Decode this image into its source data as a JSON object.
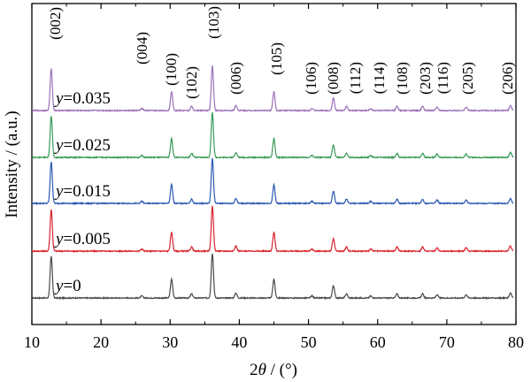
{
  "chart_data": {
    "type": "line",
    "xlabel": "2θ / (°)",
    "xlabel_parts": {
      "num": "2",
      "theta": "θ",
      "unit": " / (°)"
    },
    "ylabel": "Intensity / (a.u.)",
    "xlim": [
      10,
      80
    ],
    "x_ticks": [
      "10",
      "20",
      "30",
      "40",
      "50",
      "60",
      "70",
      "80"
    ],
    "grid": false,
    "legend": "none",
    "series": [
      {
        "name": "y=0",
        "var": "y",
        "value": "=0",
        "color": "#4a4a4a"
      },
      {
        "name": "y=0.005",
        "var": "y",
        "value": "=0.005",
        "color": "#d9232e"
      },
      {
        "name": "y=0.015",
        "var": "y",
        "value": "=0.015",
        "color": "#2b59b3"
      },
      {
        "name": "y=0.025",
        "var": "y",
        "value": "=0.025",
        "color": "#3a9a5a"
      },
      {
        "name": "y=0.035",
        "var": "y",
        "value": "=0.035",
        "color": "#9b72b8"
      }
    ],
    "peaks": [
      {
        "label": "(002)",
        "x": 12.8,
        "intensity": 1.0
      },
      {
        "label": "(004)",
        "x": 25.9,
        "intensity": 0.05
      },
      {
        "label": "(100)",
        "x": 30.2,
        "intensity": 0.45
      },
      {
        "label": "(102)",
        "x": 33.1,
        "intensity": 0.1
      },
      {
        "label": "(103)",
        "x": 36.1,
        "intensity": 1.08
      },
      {
        "label": "(006)",
        "x": 39.5,
        "intensity": 0.12
      },
      {
        "label": "(105)",
        "x": 45.0,
        "intensity": 0.45
      },
      {
        "label": "(106)",
        "x": 50.5,
        "intensity": 0.05
      },
      {
        "label": "(008)",
        "x": 53.6,
        "intensity": 0.3
      },
      {
        "label": "(112)",
        "x": 55.5,
        "intensity": 0.1
      },
      {
        "label": "(114)",
        "x": 59.0,
        "intensity": 0.05
      },
      {
        "label": "(108)",
        "x": 62.8,
        "intensity": 0.1
      },
      {
        "label": "(203)",
        "x": 66.5,
        "intensity": 0.1
      },
      {
        "label": "(116)",
        "x": 68.6,
        "intensity": 0.08
      },
      {
        "label": "(205)",
        "x": 72.8,
        "intensity": 0.08
      },
      {
        "label": "(206)",
        "x": 79.2,
        "intensity": 0.12
      }
    ]
  }
}
